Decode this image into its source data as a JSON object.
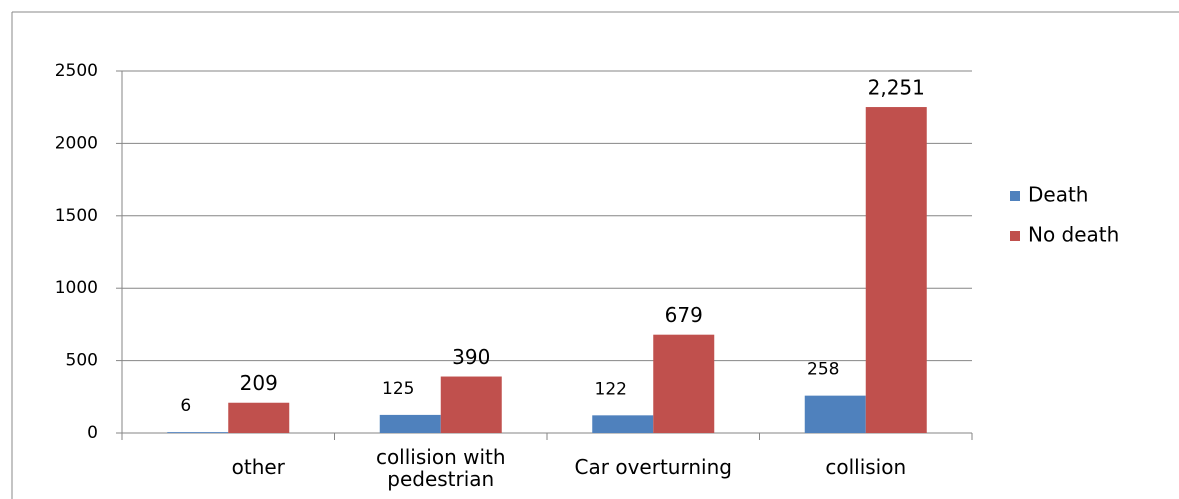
{
  "chart_data": {
    "type": "bar",
    "categories": [
      "other",
      "collision with pedestrian",
      "Car overturning",
      "collision"
    ],
    "series": [
      {
        "name": "Death",
        "color": "#4f81bd",
        "values": [
          6,
          125,
          122,
          258
        ]
      },
      {
        "name": "No death",
        "color": "#c0504d",
        "values": [
          209,
          390,
          679,
          2251
        ],
        "value_labels": [
          "209",
          "390",
          "679",
          "2,251"
        ]
      }
    ],
    "ylim": [
      0,
      2500
    ],
    "yticks": [
      0,
      500,
      1000,
      1500,
      2000,
      2500
    ],
    "grid": true,
    "legend": "right"
  }
}
